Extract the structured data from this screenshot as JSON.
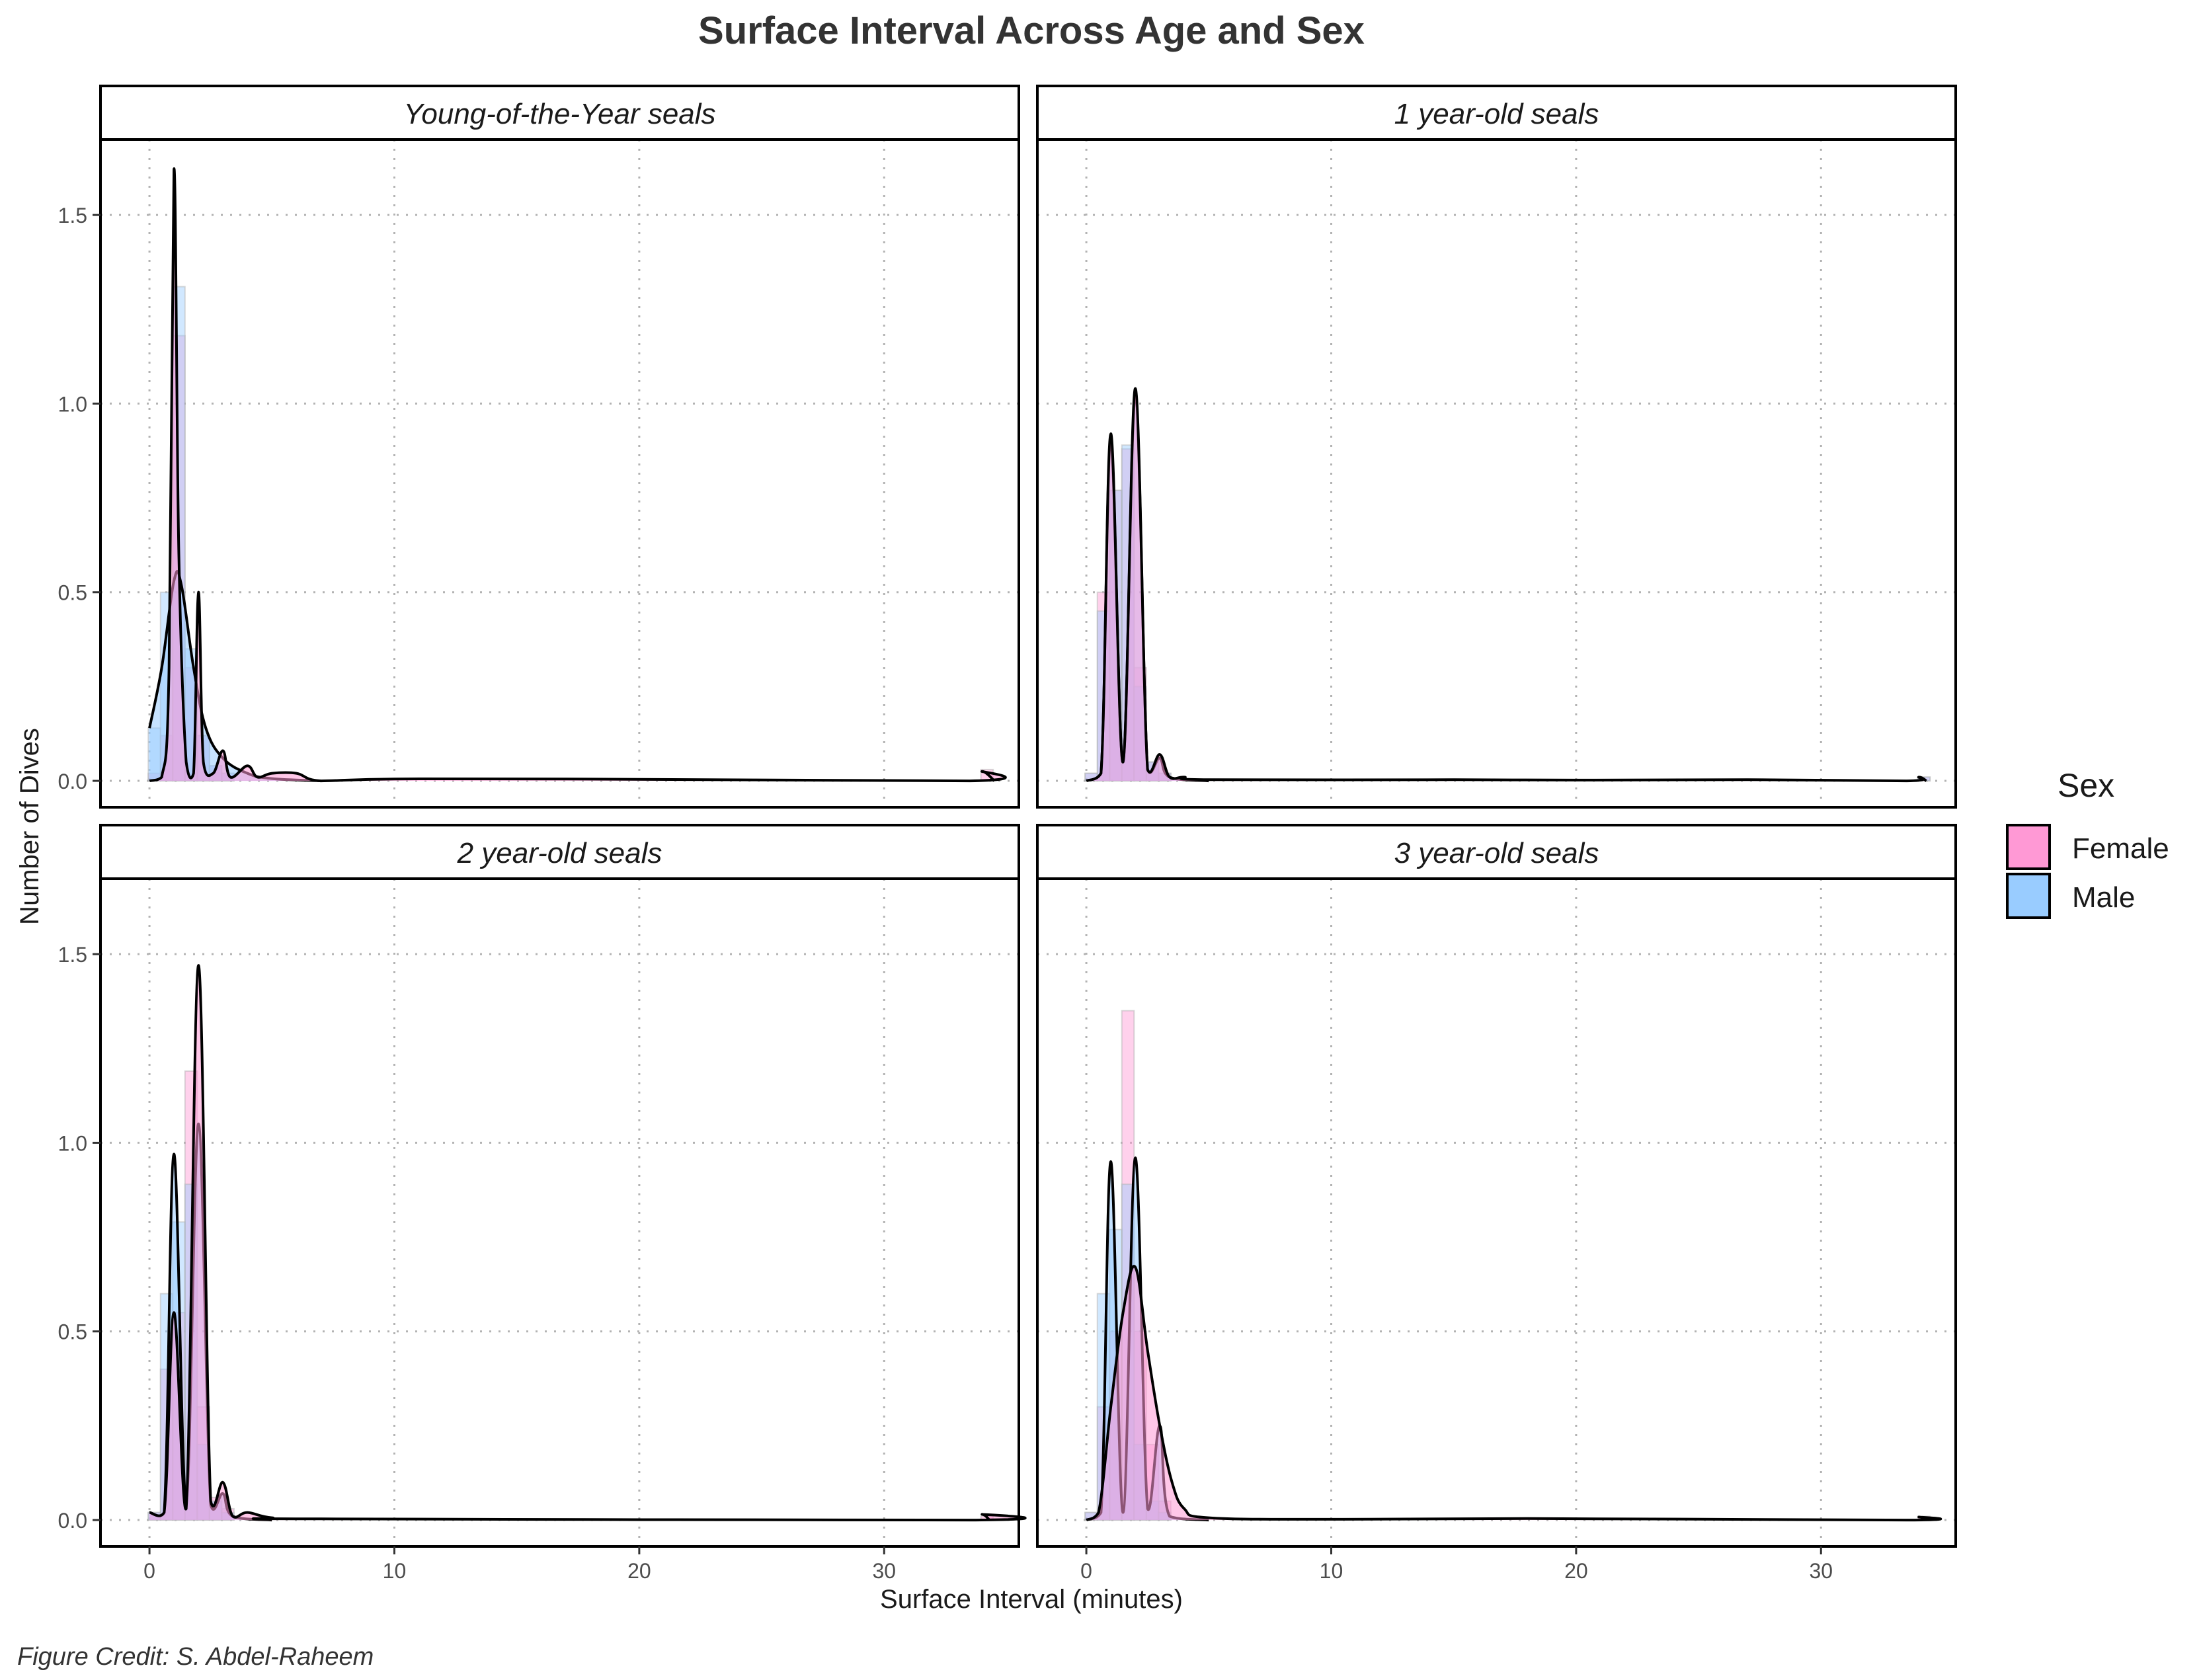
{
  "chart_data": {
    "type": "area",
    "title": "Surface Interval Across Age and Sex",
    "xlabel": "Surface Interval (minutes)",
    "ylabel": "Number of Dives",
    "caption": "Figure Credit: S. Abdel-Raheem",
    "xlim": [
      -2,
      35.5
    ],
    "ylim": [
      -0.07,
      1.7
    ],
    "x_ticks": [
      0,
      10,
      20,
      30
    ],
    "y_ticks": [
      0.0,
      0.5,
      1.0,
      1.5
    ],
    "x_tick_labels": [
      "0",
      "10",
      "20",
      "30"
    ],
    "y_tick_labels": [
      "0.0",
      "0.5",
      "1.0",
      "1.5"
    ],
    "grid": "dotted major gridlines",
    "legend": {
      "title": "Sex",
      "position": "right",
      "entries": [
        {
          "name": "Female",
          "color": "#FF99D5"
        },
        {
          "name": "Male",
          "color": "#99CCFF"
        }
      ]
    },
    "colors": {
      "female_fill": "#FF99D5",
      "male_fill": "#99CCFF",
      "overlap_fill": "#B3B3F0",
      "density_line": "#000000"
    },
    "panels": [
      {
        "label": "Young-of-the-Year seals",
        "histogram": {
          "bin_width": 0.5,
          "female": [
            [
              0.2,
              0.02
            ],
            [
              0.7,
              0.12
            ],
            [
              1.2,
              1.18
            ],
            [
              1.7,
              0.3
            ],
            [
              2.2,
              0.12
            ],
            [
              2.7,
              0.04
            ],
            [
              3.2,
              0.02
            ],
            [
              34.2,
              0.03
            ]
          ],
          "male": [
            [
              0.2,
              0.14
            ],
            [
              0.7,
              0.5
            ],
            [
              1.2,
              1.31
            ],
            [
              1.7,
              0.35
            ],
            [
              2.2,
              0.12
            ],
            [
              2.7,
              0.04
            ],
            [
              3.2,
              0.02
            ]
          ]
        },
        "density": {
          "female": [
            [
              0.0,
              0.0
            ],
            [
              0.5,
              0.01
            ],
            [
              0.8,
              0.3
            ],
            [
              1.0,
              1.62
            ],
            [
              1.2,
              0.6
            ],
            [
              1.5,
              0.05
            ],
            [
              1.8,
              0.02
            ],
            [
              2.0,
              0.5
            ],
            [
              2.2,
              0.05
            ],
            [
              2.6,
              0.02
            ],
            [
              3.0,
              0.08
            ],
            [
              3.3,
              0.01
            ],
            [
              4.0,
              0.04
            ],
            [
              4.4,
              0.01
            ],
            [
              5.0,
              0.02
            ],
            [
              6.0,
              0.02
            ],
            [
              7.0,
              0.0
            ],
            [
              10.0,
              0.005
            ],
            [
              17.0,
              0.005
            ],
            [
              33.5,
              0.0
            ],
            [
              34.0,
              0.025
            ],
            [
              34.5,
              0.0
            ]
          ],
          "male": [
            [
              0.0,
              0.14
            ],
            [
              0.5,
              0.3
            ],
            [
              1.0,
              0.53
            ],
            [
              1.3,
              0.52
            ],
            [
              1.8,
              0.3
            ],
            [
              2.3,
              0.14
            ],
            [
              3.0,
              0.06
            ],
            [
              4.0,
              0.02
            ],
            [
              5.0,
              0.006
            ],
            [
              7.0,
              0.0
            ]
          ]
        }
      },
      {
        "label": "1 year-old seals",
        "histogram": {
          "bin_width": 0.5,
          "female": [
            [
              0.2,
              0.02
            ],
            [
              0.7,
              0.5
            ],
            [
              1.2,
              0.77
            ],
            [
              1.7,
              0.88
            ],
            [
              2.2,
              0.3
            ],
            [
              2.7,
              0.05
            ],
            [
              3.2,
              0.02
            ],
            [
              34.2,
              0.01
            ]
          ],
          "male": [
            [
              0.2,
              0.02
            ],
            [
              0.7,
              0.45
            ],
            [
              1.2,
              0.77
            ],
            [
              1.7,
              0.89
            ],
            [
              2.2,
              0.25
            ],
            [
              2.7,
              0.05
            ],
            [
              3.2,
              0.02
            ],
            [
              34.2,
              0.01
            ]
          ]
        },
        "density": {
          "female": [
            [
              0.0,
              0.0
            ],
            [
              0.6,
              0.02
            ],
            [
              1.0,
              0.92
            ],
            [
              1.5,
              0.05
            ],
            [
              2.0,
              1.04
            ],
            [
              2.5,
              0.03
            ],
            [
              3.0,
              0.07
            ],
            [
              3.4,
              0.01
            ],
            [
              4.0,
              0.01
            ],
            [
              5.0,
              0.003
            ],
            [
              15.0,
              0.003
            ],
            [
              20.0,
              0.002
            ],
            [
              27.0,
              0.003
            ],
            [
              33.5,
              0.0
            ],
            [
              34.0,
              0.01
            ],
            [
              34.3,
              0.0
            ]
          ],
          "male": [
            [
              0.0,
              0.0
            ],
            [
              0.6,
              0.02
            ],
            [
              1.0,
              0.9
            ],
            [
              1.5,
              0.05
            ],
            [
              2.0,
              1.02
            ],
            [
              2.5,
              0.03
            ],
            [
              3.0,
              0.06
            ],
            [
              3.4,
              0.01
            ],
            [
              5.0,
              0.0
            ]
          ]
        }
      },
      {
        "label": "2 year-old seals",
        "histogram": {
          "bin_width": 0.5,
          "female": [
            [
              0.2,
              0.02
            ],
            [
              0.7,
              0.4
            ],
            [
              1.2,
              0.55
            ],
            [
              1.7,
              1.19
            ],
            [
              2.2,
              0.3
            ],
            [
              2.7,
              0.06
            ],
            [
              3.2,
              0.03
            ],
            [
              34.2,
              0.01
            ]
          ],
          "male": [
            [
              0.2,
              0.02
            ],
            [
              0.7,
              0.6
            ],
            [
              1.2,
              0.79
            ],
            [
              1.7,
              0.89
            ],
            [
              2.2,
              0.2
            ],
            [
              2.7,
              0.05
            ],
            [
              3.2,
              0.02
            ]
          ]
        },
        "density": {
          "female": [
            [
              0.0,
              0.02
            ],
            [
              0.6,
              0.02
            ],
            [
              1.0,
              0.55
            ],
            [
              1.5,
              0.03
            ],
            [
              2.0,
              1.47
            ],
            [
              2.5,
              0.05
            ],
            [
              3.0,
              0.1
            ],
            [
              3.4,
              0.01
            ],
            [
              4.0,
              0.02
            ],
            [
              5.0,
              0.006
            ],
            [
              7.0,
              0.003
            ],
            [
              33.5,
              0.0
            ],
            [
              34.0,
              0.015
            ],
            [
              34.3,
              0.0
            ]
          ],
          "male": [
            [
              0.0,
              0.02
            ],
            [
              0.6,
              0.02
            ],
            [
              1.0,
              0.97
            ],
            [
              1.5,
              0.05
            ],
            [
              2.0,
              1.05
            ],
            [
              2.5,
              0.04
            ],
            [
              3.0,
              0.07
            ],
            [
              3.4,
              0.01
            ],
            [
              5.0,
              0.0
            ]
          ]
        }
      },
      {
        "label": "3 year-old seals",
        "histogram": {
          "bin_width": 0.5,
          "female": [
            [
              0.2,
              0.02
            ],
            [
              0.7,
              0.3
            ],
            [
              1.2,
              0.5
            ],
            [
              1.7,
              1.35
            ],
            [
              2.2,
              0.5
            ],
            [
              2.7,
              0.2
            ],
            [
              3.2,
              0.05
            ],
            [
              34.2,
              0.01
            ]
          ],
          "male": [
            [
              0.2,
              0.02
            ],
            [
              0.7,
              0.6
            ],
            [
              1.2,
              0.77
            ],
            [
              1.7,
              0.89
            ],
            [
              2.2,
              0.2
            ],
            [
              2.7,
              0.05
            ],
            [
              3.2,
              0.02
            ]
          ]
        },
        "density": {
          "female": [
            [
              0.0,
              0.0
            ],
            [
              0.5,
              0.02
            ],
            [
              1.0,
              0.3
            ],
            [
              1.5,
              0.55
            ],
            [
              2.0,
              0.67
            ],
            [
              2.5,
              0.45
            ],
            [
              3.0,
              0.25
            ],
            [
              3.5,
              0.1
            ],
            [
              4.0,
              0.03
            ],
            [
              5.0,
              0.006
            ],
            [
              10.0,
              0.002
            ],
            [
              18.0,
              0.004
            ],
            [
              33.5,
              0.0
            ],
            [
              34.0,
              0.008
            ],
            [
              34.3,
              0.0
            ]
          ],
          "male": [
            [
              0.0,
              0.0
            ],
            [
              0.6,
              0.02
            ],
            [
              1.0,
              0.95
            ],
            [
              1.5,
              0.02
            ],
            [
              2.0,
              0.96
            ],
            [
              2.5,
              0.03
            ],
            [
              3.0,
              0.25
            ],
            [
              3.4,
              0.01
            ],
            [
              5.0,
              0.0
            ]
          ]
        }
      }
    ]
  }
}
